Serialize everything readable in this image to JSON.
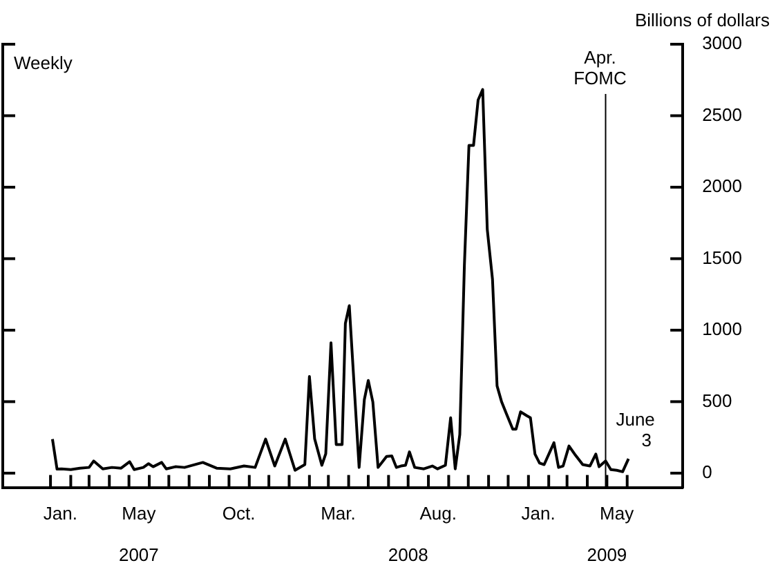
{
  "chart_data": {
    "type": "line",
    "ylabel": "Billions of dollars",
    "annotations": [
      "Weekly",
      {
        "text": "June\n3",
        "x": "2009-06-03",
        "y": 100
      }
    ],
    "x": [
      "2007-01-04",
      "2007-01-11",
      "2007-01-18",
      "2007-02-01",
      "2007-02-15",
      "2007-03-01",
      "2007-03-08",
      "2007-03-22",
      "2007-04-05",
      "2007-04-19",
      "2007-05-02",
      "2007-05-09",
      "2007-05-23",
      "2007-05-31",
      "2007-06-07",
      "2007-06-20",
      "2007-06-27",
      "2007-07-11",
      "2007-07-25",
      "2007-08-22",
      "2007-09-12",
      "2007-10-03",
      "2007-10-24",
      "2007-11-10",
      "2007-11-26",
      "2007-12-10",
      "2007-12-26",
      "2008-01-10",
      "2008-01-25",
      "2008-02-01",
      "2008-02-09",
      "2008-02-20",
      "2008-02-26",
      "2008-03-05",
      "2008-03-13",
      "2008-03-22",
      "2008-03-27",
      "2008-04-02",
      "2008-04-17",
      "2008-04-25",
      "2008-05-01",
      "2008-05-08",
      "2008-05-16",
      "2008-05-29",
      "2008-06-06",
      "2008-06-13",
      "2008-06-20",
      "2008-06-27",
      "2008-07-03",
      "2008-07-11",
      "2008-07-25",
      "2008-08-07",
      "2008-08-15",
      "2008-08-27",
      "2008-09-04",
      "2008-09-11",
      "2008-09-18",
      "2008-09-25",
      "2008-10-02",
      "2008-10-09",
      "2008-10-16",
      "2008-10-23",
      "2008-10-30",
      "2008-11-07",
      "2008-11-14",
      "2008-11-21",
      "2008-11-28",
      "2008-12-08",
      "2008-12-13",
      "2008-12-20",
      "2008-12-29",
      "2009-01-04",
      "2009-01-11",
      "2009-01-18",
      "2009-01-25",
      "2009-02-09",
      "2009-02-16",
      "2009-02-23",
      "2009-03-04",
      "2009-03-14",
      "2009-03-25",
      "2009-04-05",
      "2009-04-14",
      "2009-04-19",
      "2009-04-29",
      "2009-05-07",
      "2009-05-16",
      "2009-05-25",
      "2009-06-03"
    ],
    "series": [
      {
        "color": "#000000",
        "values": [
          238,
          28,
          30,
          25,
          35,
          40,
          85,
          30,
          40,
          35,
          80,
          25,
          40,
          66,
          45,
          75,
          30,
          45,
          40,
          75,
          35,
          30,
          50,
          40,
          238,
          50,
          238,
          20,
          60,
          676,
          240,
          55,
          135,
          911,
          200,
          200,
          1047,
          1171,
          40,
          514,
          648,
          498,
          40,
          117,
          120,
          40,
          50,
          55,
          149,
          40,
          30,
          50,
          30,
          55,
          387,
          30,
          270,
          1451,
          2292,
          2292,
          2610,
          2683,
          1705,
          1356,
          610,
          498,
          419,
          308,
          308,
          429,
          403,
          387,
          133,
          70,
          60,
          213,
          40,
          50,
          190,
          125,
          60,
          50,
          133,
          45,
          85,
          25,
          20,
          10,
          100
        ]
      }
    ],
    "xlim": [
      "2006-10-20",
      "2009-08-25"
    ],
    "xticks": [
      {
        "value": "2007-01-01",
        "label": null
      },
      {
        "value": "2007-01-16",
        "label": "Jan."
      },
      {
        "value": "2007-02-01",
        "label": null
      },
      {
        "value": "2007-03-01",
        "label": null
      },
      {
        "value": "2007-04-01",
        "label": null
      },
      {
        "value": "2007-05-01",
        "label": null
      },
      {
        "value": "2007-05-16",
        "label": "May"
      },
      {
        "value": "2007-06-01",
        "label": null
      },
      {
        "value": "2007-07-01",
        "label": null
      },
      {
        "value": "2007-08-01",
        "label": null
      },
      {
        "value": "2007-09-01",
        "label": null
      },
      {
        "value": "2007-10-01",
        "label": null
      },
      {
        "value": "2007-10-16",
        "label": "Oct."
      },
      {
        "value": "2007-11-01",
        "label": null
      },
      {
        "value": "2007-12-01",
        "label": null
      },
      {
        "value": "2008-01-01",
        "label": null
      },
      {
        "value": "2008-02-01",
        "label": null
      },
      {
        "value": "2008-03-01",
        "label": null
      },
      {
        "value": "2008-03-16",
        "label": "Mar."
      },
      {
        "value": "2008-04-01",
        "label": null
      },
      {
        "value": "2008-05-01",
        "label": null
      },
      {
        "value": "2008-06-01",
        "label": null
      },
      {
        "value": "2008-07-01",
        "label": null
      },
      {
        "value": "2008-08-01",
        "label": null
      },
      {
        "value": "2008-08-16",
        "label": "Aug."
      },
      {
        "value": "2008-09-01",
        "label": null
      },
      {
        "value": "2008-10-01",
        "label": null
      },
      {
        "value": "2008-11-01",
        "label": null
      },
      {
        "value": "2008-12-01",
        "label": null
      },
      {
        "value": "2009-01-01",
        "label": null
      },
      {
        "value": "2009-01-16",
        "label": "Jan."
      },
      {
        "value": "2009-02-01",
        "label": null
      },
      {
        "value": "2009-03-01",
        "label": null
      },
      {
        "value": "2009-04-01",
        "label": null
      },
      {
        "value": "2009-05-01",
        "label": null
      },
      {
        "value": "2009-05-16",
        "label": "May"
      },
      {
        "value": "2009-06-01",
        "label": null
      }
    ],
    "x2lim": [
      "2006-10-20",
      "2009-08-25"
    ],
    "x2ticks": [
      {
        "value": "2007-05-16",
        "label": "2007"
      },
      {
        "value": "2008-07-01",
        "label": "2008"
      },
      {
        "value": "2009-05-01",
        "label": "2009"
      }
    ],
    "ylim": [
      -100,
      3000
    ],
    "yticks": [
      0,
      500,
      1000,
      1500,
      2000,
      2500,
      3000
    ],
    "ref_lines": [
      {
        "axis": "x",
        "value": "2009-04-29",
        "label": "Apr.\nFOMC",
        "color": "#000000"
      }
    ],
    "grid": false,
    "legend": false
  }
}
